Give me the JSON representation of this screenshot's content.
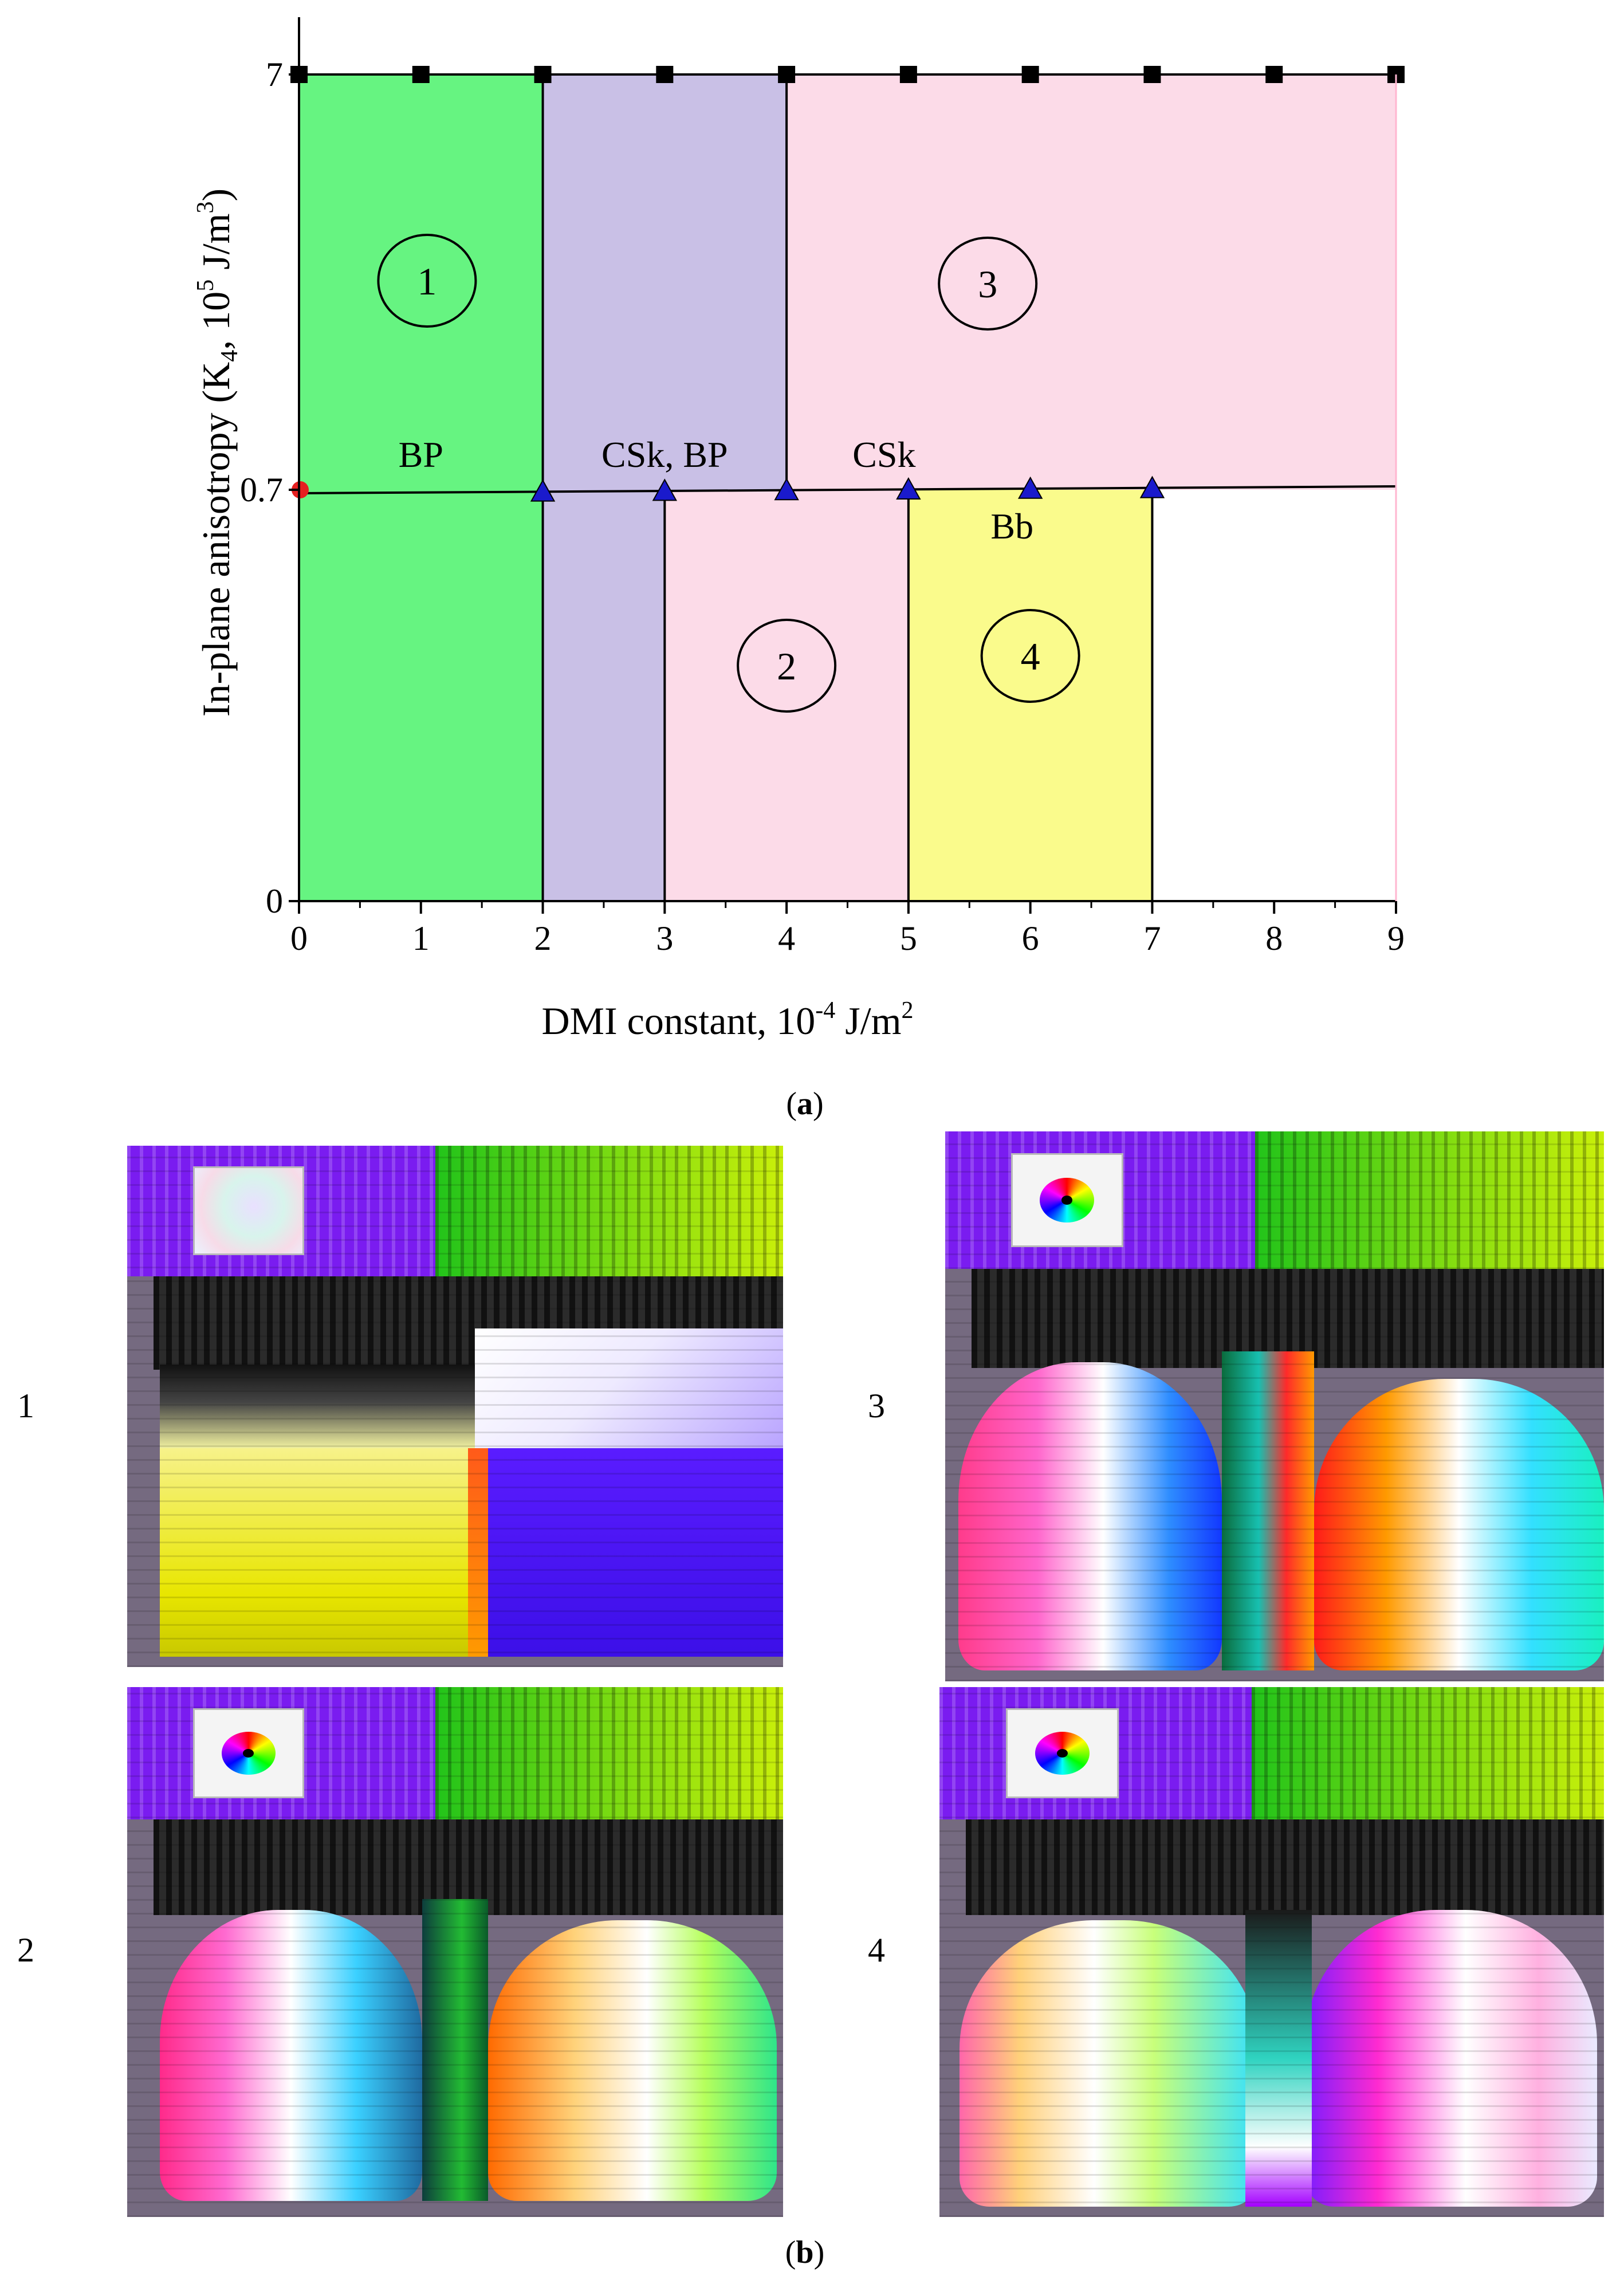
{
  "chart_data": {
    "type": "phase-diagram",
    "xlabel": "DMI constant, 10",
    "xlabel_sup": "-4",
    "xlabel_tail": " J/m",
    "xlabel_tail_sup": "2",
    "ylabel_pre": "In-plane anisotropy (K",
    "ylabel_sub": "4",
    "ylabel_mid": ", 10",
    "ylabel_sup1": "5",
    "ylabel_unit": " J/m",
    "ylabel_sup2": "3",
    "ylabel_close": ")",
    "xlim": [
      0,
      9
    ],
    "x_ticks": [
      "0",
      "1",
      "2",
      "3",
      "4",
      "5",
      "6",
      "7",
      "8",
      "9"
    ],
    "y_levels": [
      0,
      0.7,
      7
    ],
    "y_ticks": [
      "0",
      "0.7",
      "7"
    ],
    "regions": [
      {
        "x0": 0,
        "x1": 2,
        "y0": "0",
        "y1": "7",
        "color": "#66f481"
      },
      {
        "x0": 2,
        "x1": 4,
        "y0": "0.7",
        "y1": "7",
        "color": "#c9c0e6"
      },
      {
        "x0": 2,
        "x1": 3,
        "y0": "0",
        "y1": "0.7",
        "color": "#c9c0e6"
      },
      {
        "x0": 4,
        "x1": 9,
        "y0": "0.7",
        "y1": "7",
        "color": "#fcdbe8"
      },
      {
        "x0": 3,
        "x1": 5,
        "y0": "0",
        "y1": "0.7",
        "color": "#fcdbe8"
      },
      {
        "x0": 5,
        "x1": 7,
        "y0": "0",
        "y1": "0.7",
        "color": "#fafb8c"
      }
    ],
    "square_markers_x": [
      0,
      1,
      2,
      3,
      4,
      5,
      6,
      7,
      8,
      9
    ],
    "square_markers_y": "7",
    "triangle_markers_x": [
      2,
      3,
      4,
      5,
      6,
      7
    ],
    "triangle_markers_y": "0.7",
    "circle_marker": {
      "x": 0,
      "y": "0.7",
      "color": "#e52020"
    },
    "phase_labels": [
      {
        "text": "BP",
        "x": 1.0,
        "y": "0.7"
      },
      {
        "text": "CSk, BP",
        "x": 3.0,
        "y": "0.7"
      },
      {
        "text": "CSk",
        "x": 4.8,
        "y": "0.7"
      },
      {
        "text": "Bb",
        "x": 5.85,
        "y": "0.7"
      }
    ],
    "region_numbers": [
      {
        "text": "1",
        "x": 1.05,
        "y": "7"
      },
      {
        "text": "3",
        "x": 5.65,
        "y": "7"
      },
      {
        "text": "2",
        "x": 4.0,
        "y": "0"
      },
      {
        "text": "4",
        "x": 6.0,
        "y": "0"
      }
    ]
  },
  "panel_a": {
    "open": "(",
    "letter": "a",
    "close": ")"
  },
  "panel_b": {
    "open": "(",
    "letter": "b",
    "close": ")"
  },
  "panel_b_labels": [
    "1",
    "3",
    "2",
    "4"
  ],
  "colors": {
    "arrow_bg": "#756a80",
    "marker_blue": "#1a1acc"
  }
}
